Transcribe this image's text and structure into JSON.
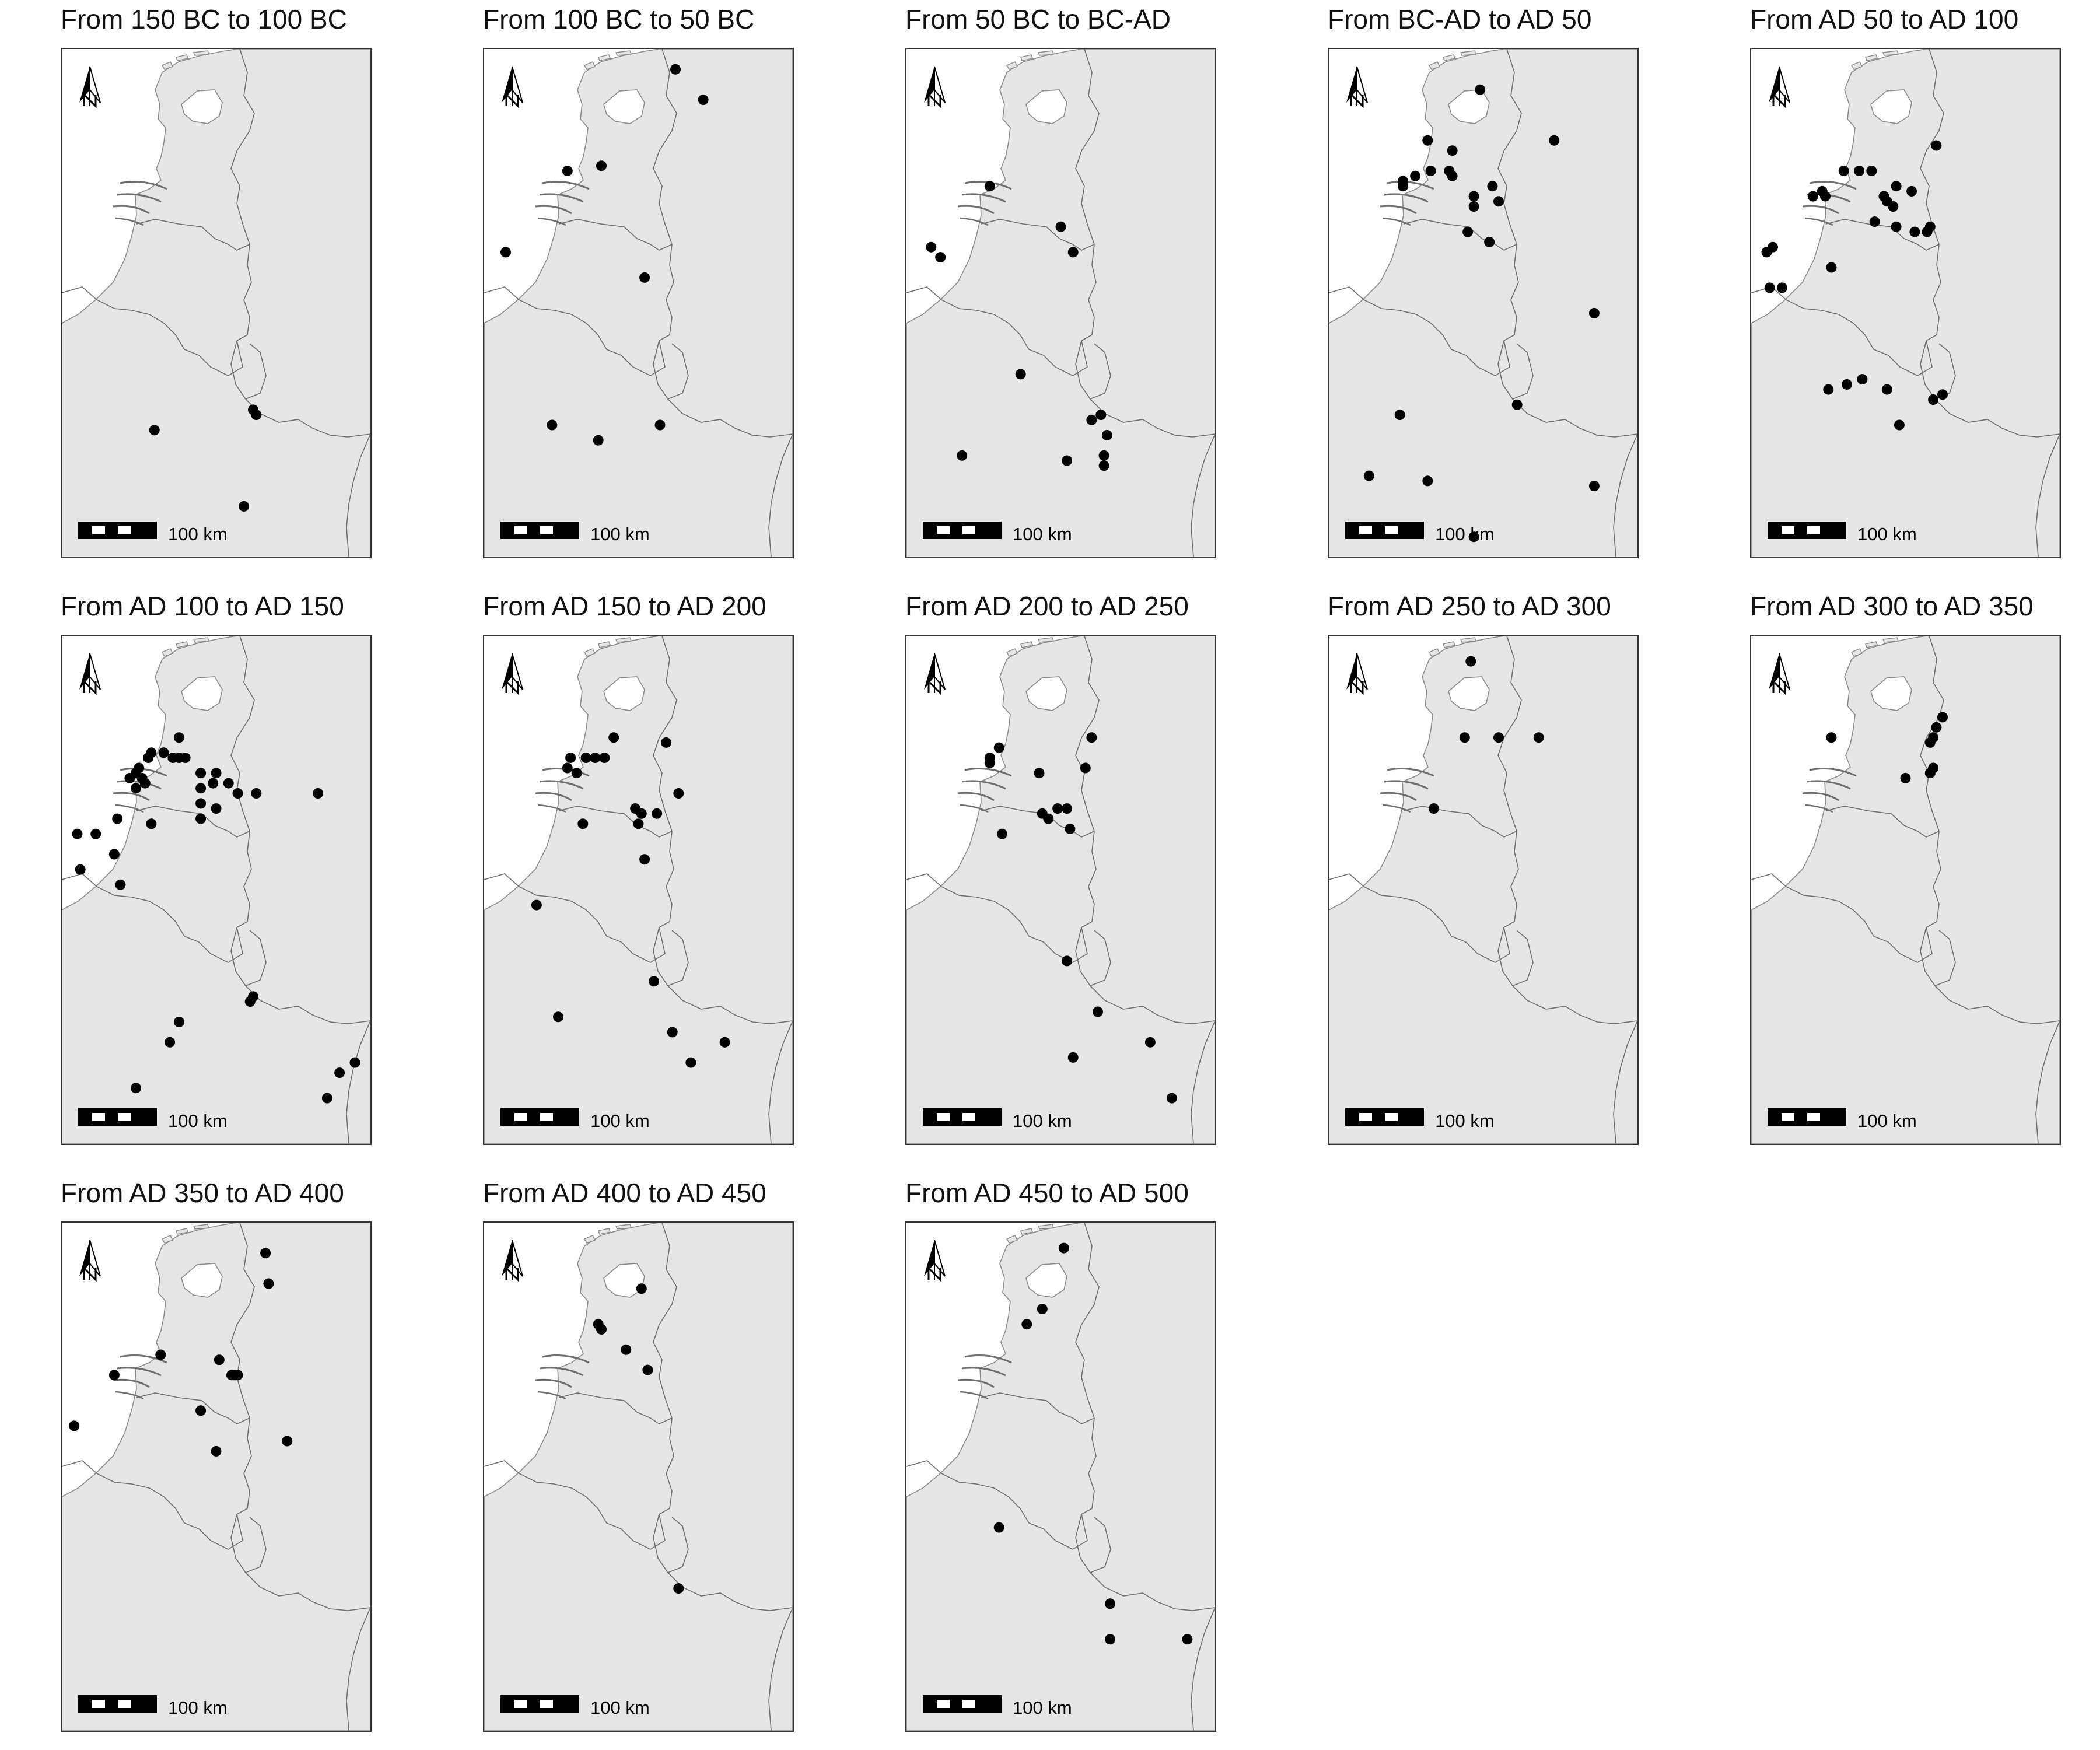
{
  "figure": {
    "panels": [
      {
        "title": "From 150 BC to 100 BC",
        "scale_label": "100 km",
        "sites": [
          [
            0.3,
            0.75
          ],
          [
            0.62,
            0.71
          ],
          [
            0.63,
            0.72
          ],
          [
            0.59,
            0.9
          ]
        ]
      },
      {
        "title": "From 100 BC to 50 BC",
        "scale_label": "100 km",
        "sites": [
          [
            0.62,
            0.04
          ],
          [
            0.71,
            0.1
          ],
          [
            0.27,
            0.24
          ],
          [
            0.38,
            0.23
          ],
          [
            0.07,
            0.4
          ],
          [
            0.52,
            0.45
          ],
          [
            0.22,
            0.74
          ],
          [
            0.37,
            0.77
          ],
          [
            0.57,
            0.74
          ]
        ]
      },
      {
        "title": "From 50 BC to BC-AD",
        "scale_label": "100 km",
        "sites": [
          [
            0.27,
            0.27
          ],
          [
            0.08,
            0.39
          ],
          [
            0.11,
            0.41
          ],
          [
            0.5,
            0.35
          ],
          [
            0.54,
            0.4
          ],
          [
            0.37,
            0.64
          ],
          [
            0.6,
            0.73
          ],
          [
            0.63,
            0.72
          ],
          [
            0.65,
            0.76
          ],
          [
            0.64,
            0.8
          ],
          [
            0.64,
            0.82
          ],
          [
            0.52,
            0.81
          ],
          [
            0.18,
            0.8
          ]
        ]
      },
      {
        "title": "From BC-AD to AD 50",
        "scale_label": "100 km",
        "sites": [
          [
            0.49,
            0.08
          ],
          [
            0.73,
            0.18
          ],
          [
            0.32,
            0.18
          ],
          [
            0.4,
            0.2
          ],
          [
            0.33,
            0.24
          ],
          [
            0.28,
            0.25
          ],
          [
            0.24,
            0.26
          ],
          [
            0.39,
            0.24
          ],
          [
            0.4,
            0.25
          ],
          [
            0.24,
            0.27
          ],
          [
            0.47,
            0.29
          ],
          [
            0.53,
            0.27
          ],
          [
            0.47,
            0.31
          ],
          [
            0.55,
            0.3
          ],
          [
            0.45,
            0.36
          ],
          [
            0.52,
            0.38
          ],
          [
            0.86,
            0.52
          ],
          [
            0.61,
            0.7
          ],
          [
            0.23,
            0.72
          ],
          [
            0.13,
            0.84
          ],
          [
            0.32,
            0.85
          ],
          [
            0.86,
            0.86
          ],
          [
            0.47,
            0.96
          ]
        ]
      },
      {
        "title": "From AD 50 to AD 100",
        "scale_label": "100 km",
        "sites": [
          [
            0.6,
            0.19
          ],
          [
            0.3,
            0.24
          ],
          [
            0.35,
            0.24
          ],
          [
            0.39,
            0.24
          ],
          [
            0.23,
            0.28
          ],
          [
            0.24,
            0.29
          ],
          [
            0.2,
            0.29
          ],
          [
            0.47,
            0.27
          ],
          [
            0.43,
            0.29
          ],
          [
            0.44,
            0.3
          ],
          [
            0.46,
            0.31
          ],
          [
            0.52,
            0.28
          ],
          [
            0.4,
            0.34
          ],
          [
            0.47,
            0.35
          ],
          [
            0.53,
            0.36
          ],
          [
            0.57,
            0.36
          ],
          [
            0.58,
            0.35
          ],
          [
            0.05,
            0.4
          ],
          [
            0.07,
            0.39
          ],
          [
            0.26,
            0.43
          ],
          [
            0.06,
            0.47
          ],
          [
            0.1,
            0.47
          ],
          [
            0.25,
            0.67
          ],
          [
            0.31,
            0.66
          ],
          [
            0.36,
            0.65
          ],
          [
            0.44,
            0.67
          ],
          [
            0.59,
            0.69
          ],
          [
            0.62,
            0.68
          ],
          [
            0.48,
            0.74
          ]
        ]
      },
      {
        "title": "From AD 100 to AD 150",
        "scale_label": "100 km",
        "sites": [
          [
            0.38,
            0.2
          ],
          [
            0.29,
            0.23
          ],
          [
            0.33,
            0.23
          ],
          [
            0.38,
            0.24
          ],
          [
            0.4,
            0.24
          ],
          [
            0.36,
            0.24
          ],
          [
            0.28,
            0.24
          ],
          [
            0.25,
            0.26
          ],
          [
            0.24,
            0.27
          ],
          [
            0.26,
            0.28
          ],
          [
            0.22,
            0.28
          ],
          [
            0.27,
            0.29
          ],
          [
            0.24,
            0.3
          ],
          [
            0.45,
            0.27
          ],
          [
            0.5,
            0.27
          ],
          [
            0.49,
            0.29
          ],
          [
            0.54,
            0.29
          ],
          [
            0.45,
            0.3
          ],
          [
            0.57,
            0.31
          ],
          [
            0.63,
            0.31
          ],
          [
            0.83,
            0.31
          ],
          [
            0.18,
            0.36
          ],
          [
            0.29,
            0.37
          ],
          [
            0.45,
            0.33
          ],
          [
            0.5,
            0.34
          ],
          [
            0.45,
            0.36
          ],
          [
            0.05,
            0.39
          ],
          [
            0.11,
            0.39
          ],
          [
            0.17,
            0.43
          ],
          [
            0.06,
            0.46
          ],
          [
            0.19,
            0.49
          ],
          [
            0.62,
            0.71
          ],
          [
            0.61,
            0.72
          ],
          [
            0.38,
            0.76
          ],
          [
            0.35,
            0.8
          ],
          [
            0.24,
            0.89
          ],
          [
            0.95,
            0.84
          ],
          [
            0.9,
            0.86
          ],
          [
            0.86,
            0.91
          ]
        ]
      },
      {
        "title": "From AD 150 to AD 200",
        "scale_label": "100 km",
        "sites": [
          [
            0.42,
            0.2
          ],
          [
            0.59,
            0.21
          ],
          [
            0.28,
            0.24
          ],
          [
            0.33,
            0.24
          ],
          [
            0.36,
            0.24
          ],
          [
            0.39,
            0.24
          ],
          [
            0.27,
            0.26
          ],
          [
            0.3,
            0.27
          ],
          [
            0.63,
            0.31
          ],
          [
            0.49,
            0.34
          ],
          [
            0.51,
            0.35
          ],
          [
            0.56,
            0.35
          ],
          [
            0.5,
            0.37
          ],
          [
            0.32,
            0.37
          ],
          [
            0.52,
            0.44
          ],
          [
            0.17,
            0.53
          ],
          [
            0.55,
            0.68
          ],
          [
            0.24,
            0.75
          ],
          [
            0.61,
            0.78
          ],
          [
            0.78,
            0.8
          ],
          [
            0.67,
            0.84
          ]
        ]
      },
      {
        "title": "From AD 200 to AD 250",
        "scale_label": "100 km",
        "sites": [
          [
            0.6,
            0.2
          ],
          [
            0.3,
            0.22
          ],
          [
            0.27,
            0.24
          ],
          [
            0.27,
            0.25
          ],
          [
            0.58,
            0.26
          ],
          [
            0.43,
            0.27
          ],
          [
            0.49,
            0.34
          ],
          [
            0.52,
            0.34
          ],
          [
            0.44,
            0.35
          ],
          [
            0.46,
            0.36
          ],
          [
            0.53,
            0.38
          ],
          [
            0.31,
            0.39
          ],
          [
            0.52,
            0.64
          ],
          [
            0.62,
            0.74
          ],
          [
            0.79,
            0.8
          ],
          [
            0.54,
            0.83
          ],
          [
            0.86,
            0.91
          ]
        ]
      },
      {
        "title": "From AD 250 to AD 300",
        "scale_label": "100 km",
        "sites": [
          [
            0.46,
            0.05
          ],
          [
            0.44,
            0.2
          ],
          [
            0.55,
            0.2
          ],
          [
            0.68,
            0.2
          ],
          [
            0.34,
            0.34
          ]
        ]
      },
      {
        "title": "From AD 300 to AD 350",
        "scale_label": "100 km",
        "sites": [
          [
            0.62,
            0.16
          ],
          [
            0.6,
            0.18
          ],
          [
            0.59,
            0.2
          ],
          [
            0.58,
            0.21
          ],
          [
            0.26,
            0.2
          ],
          [
            0.59,
            0.26
          ],
          [
            0.58,
            0.27
          ],
          [
            0.5,
            0.28
          ]
        ]
      },
      {
        "title": "From AD 350 to AD 400",
        "scale_label": "100 km",
        "sites": [
          [
            0.66,
            0.06
          ],
          [
            0.67,
            0.12
          ],
          [
            0.32,
            0.26
          ],
          [
            0.51,
            0.27
          ],
          [
            0.56,
            0.3
          ],
          [
            0.55,
            0.3
          ],
          [
            0.57,
            0.3
          ],
          [
            0.17,
            0.3
          ],
          [
            0.45,
            0.37
          ],
          [
            0.04,
            0.4
          ],
          [
            0.5,
            0.45
          ],
          [
            0.73,
            0.43
          ]
        ]
      },
      {
        "title": "From AD 400 to AD 450",
        "scale_label": "100 km",
        "sites": [
          [
            0.51,
            0.13
          ],
          [
            0.37,
            0.2
          ],
          [
            0.38,
            0.21
          ],
          [
            0.46,
            0.25
          ],
          [
            0.53,
            0.29
          ],
          [
            0.63,
            0.72
          ]
        ]
      },
      {
        "title": "From AD 450 to AD 500",
        "scale_label": "100 km",
        "sites": [
          [
            0.51,
            0.05
          ],
          [
            0.44,
            0.17
          ],
          [
            0.39,
            0.2
          ],
          [
            0.3,
            0.6
          ],
          [
            0.66,
            0.75
          ],
          [
            0.66,
            0.82
          ],
          [
            0.91,
            0.82
          ]
        ]
      }
    ]
  }
}
